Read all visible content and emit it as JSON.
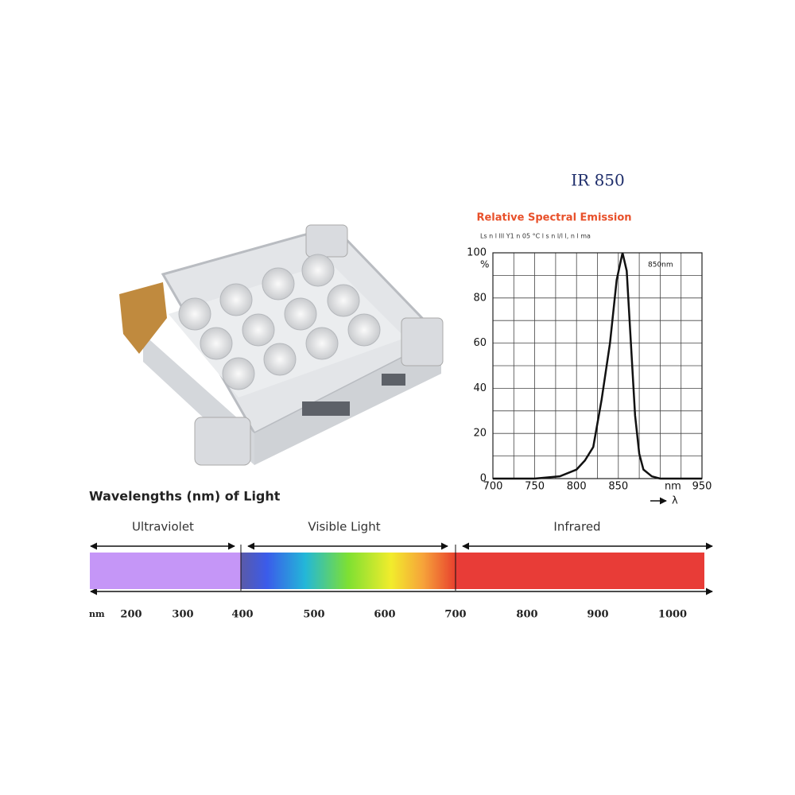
{
  "header": {
    "title": "IR 850"
  },
  "chart_data": {
    "type": "line",
    "title": "Relative Spectral Emission",
    "subtitle": "Ls n l lll Y1 n 05 °C l s n l/l l, n l ma",
    "y_label": "%",
    "x_label": "λ",
    "annotation": "850nm",
    "x": [
      700,
      750,
      780,
      800,
      810,
      820,
      830,
      840,
      848,
      855,
      860,
      865,
      870,
      875,
      880,
      890,
      900,
      950
    ],
    "series": [
      {
        "color": "#111111",
        "values": [
          0,
          0,
          1,
          4,
          8,
          14,
          35,
          60,
          88,
          100,
          92,
          60,
          28,
          11,
          4,
          1,
          0,
          0
        ]
      }
    ],
    "xlim": [
      700,
      950
    ],
    "ylim": [
      0,
      100
    ],
    "xticks": [
      700,
      750,
      800,
      850,
      {
        "value": 900,
        "label": "nm"
      },
      950
    ],
    "yticks": [
      0,
      20,
      40,
      60,
      80,
      100
    ],
    "grid": true
  },
  "spectrum": {
    "title": "Wavelengths (nm) of Light",
    "regions": [
      "Ultraviolet",
      "Visible Light",
      "Infrared"
    ],
    "unit": "nm",
    "ticks": [
      200,
      300,
      400,
      500,
      600,
      700,
      800,
      900,
      1000
    ]
  }
}
